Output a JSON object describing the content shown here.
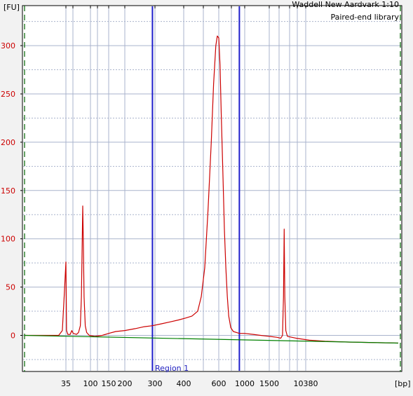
{
  "chart_data": {
    "type": "line",
    "title": "Waddell New Aardvark 1:10",
    "subtitle": "Paired-end library",
    "ylabel": "[FU]",
    "xlabel": "[bp]",
    "ylim": [
      -37,
      337
    ],
    "y_ticks": [
      0,
      50,
      100,
      150,
      200,
      250,
      300
    ],
    "x_axis_scale": "log",
    "x_tick_labels": [
      "35",
      "100",
      "150",
      "200",
      "300",
      "400",
      "600",
      "1000",
      "1500",
      "10380"
    ],
    "region": {
      "label": "Region 1",
      "start_bp": 290,
      "end_bp": 900
    },
    "grid": true,
    "colors": {
      "signal": "#cc0000",
      "baseline": "#008000",
      "region_lines": "#1f1fcc",
      "grid": "#a9b3cc",
      "background": "#f2f2f2",
      "marker_lines": "#006400"
    },
    "series": [
      {
        "kind": "signal",
        "points": [
          [
            25,
            0
          ],
          [
            33,
            0
          ],
          [
            34,
            5
          ],
          [
            34.5,
            40
          ],
          [
            35,
            76
          ],
          [
            35.5,
            40
          ],
          [
            36,
            5
          ],
          [
            38,
            1
          ],
          [
            42,
            1
          ],
          [
            45,
            5
          ],
          [
            48,
            2
          ],
          [
            55,
            1
          ],
          [
            60,
            3
          ],
          [
            65,
            10
          ],
          [
            68,
            40
          ],
          [
            70,
            90
          ],
          [
            72,
            134
          ],
          [
            74,
            90
          ],
          [
            76,
            40
          ],
          [
            80,
            10
          ],
          [
            85,
            3
          ],
          [
            95,
            0
          ],
          [
            110,
            -1
          ],
          [
            130,
            0
          ],
          [
            150,
            2
          ],
          [
            170,
            4
          ],
          [
            200,
            5
          ],
          [
            230,
            7
          ],
          [
            260,
            9
          ],
          [
            290,
            10
          ],
          [
            320,
            12
          ],
          [
            350,
            14
          ],
          [
            380,
            16
          ],
          [
            410,
            18
          ],
          [
            440,
            20
          ],
          [
            470,
            25
          ],
          [
            490,
            40
          ],
          [
            510,
            70
          ],
          [
            530,
            130
          ],
          [
            550,
            200
          ],
          [
            565,
            260
          ],
          [
            580,
            300
          ],
          [
            590,
            310
          ],
          [
            600,
            308
          ],
          [
            615,
            280
          ],
          [
            630,
            230
          ],
          [
            650,
            170
          ],
          [
            670,
            110
          ],
          [
            690,
            70
          ],
          [
            710,
            40
          ],
          [
            730,
            20
          ],
          [
            760,
            8
          ],
          [
            800,
            4
          ],
          [
            900,
            2
          ],
          [
            1000,
            2
          ],
          [
            1150,
            1
          ],
          [
            1300,
            0
          ],
          [
            1500,
            -1
          ],
          [
            1700,
            -2
          ],
          [
            1800,
            -3
          ],
          [
            1850,
            0
          ],
          [
            1880,
            40
          ],
          [
            1900,
            110
          ],
          [
            1920,
            40
          ],
          [
            1950,
            5
          ],
          [
            2000,
            -1
          ],
          [
            2300,
            -3
          ],
          [
            2800,
            -5
          ],
          [
            3500,
            -6
          ],
          [
            5000,
            -7
          ],
          [
            10000,
            -8
          ]
        ]
      },
      {
        "kind": "baseline",
        "points": [
          [
            25,
            0
          ],
          [
            10000,
            -8
          ]
        ]
      }
    ]
  }
}
